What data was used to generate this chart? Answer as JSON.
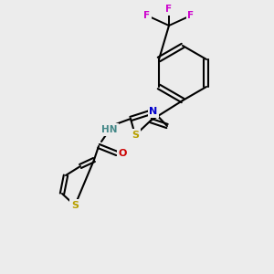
{
  "background_color": "#ececec",
  "bond_color": "#000000",
  "atom_colors": {
    "S": "#b8a000",
    "N": "#0000cc",
    "O": "#cc0000",
    "F": "#cc00cc",
    "H": "#448888",
    "C": "#000000"
  },
  "figsize": [
    3.0,
    3.0
  ],
  "dpi": 100
}
